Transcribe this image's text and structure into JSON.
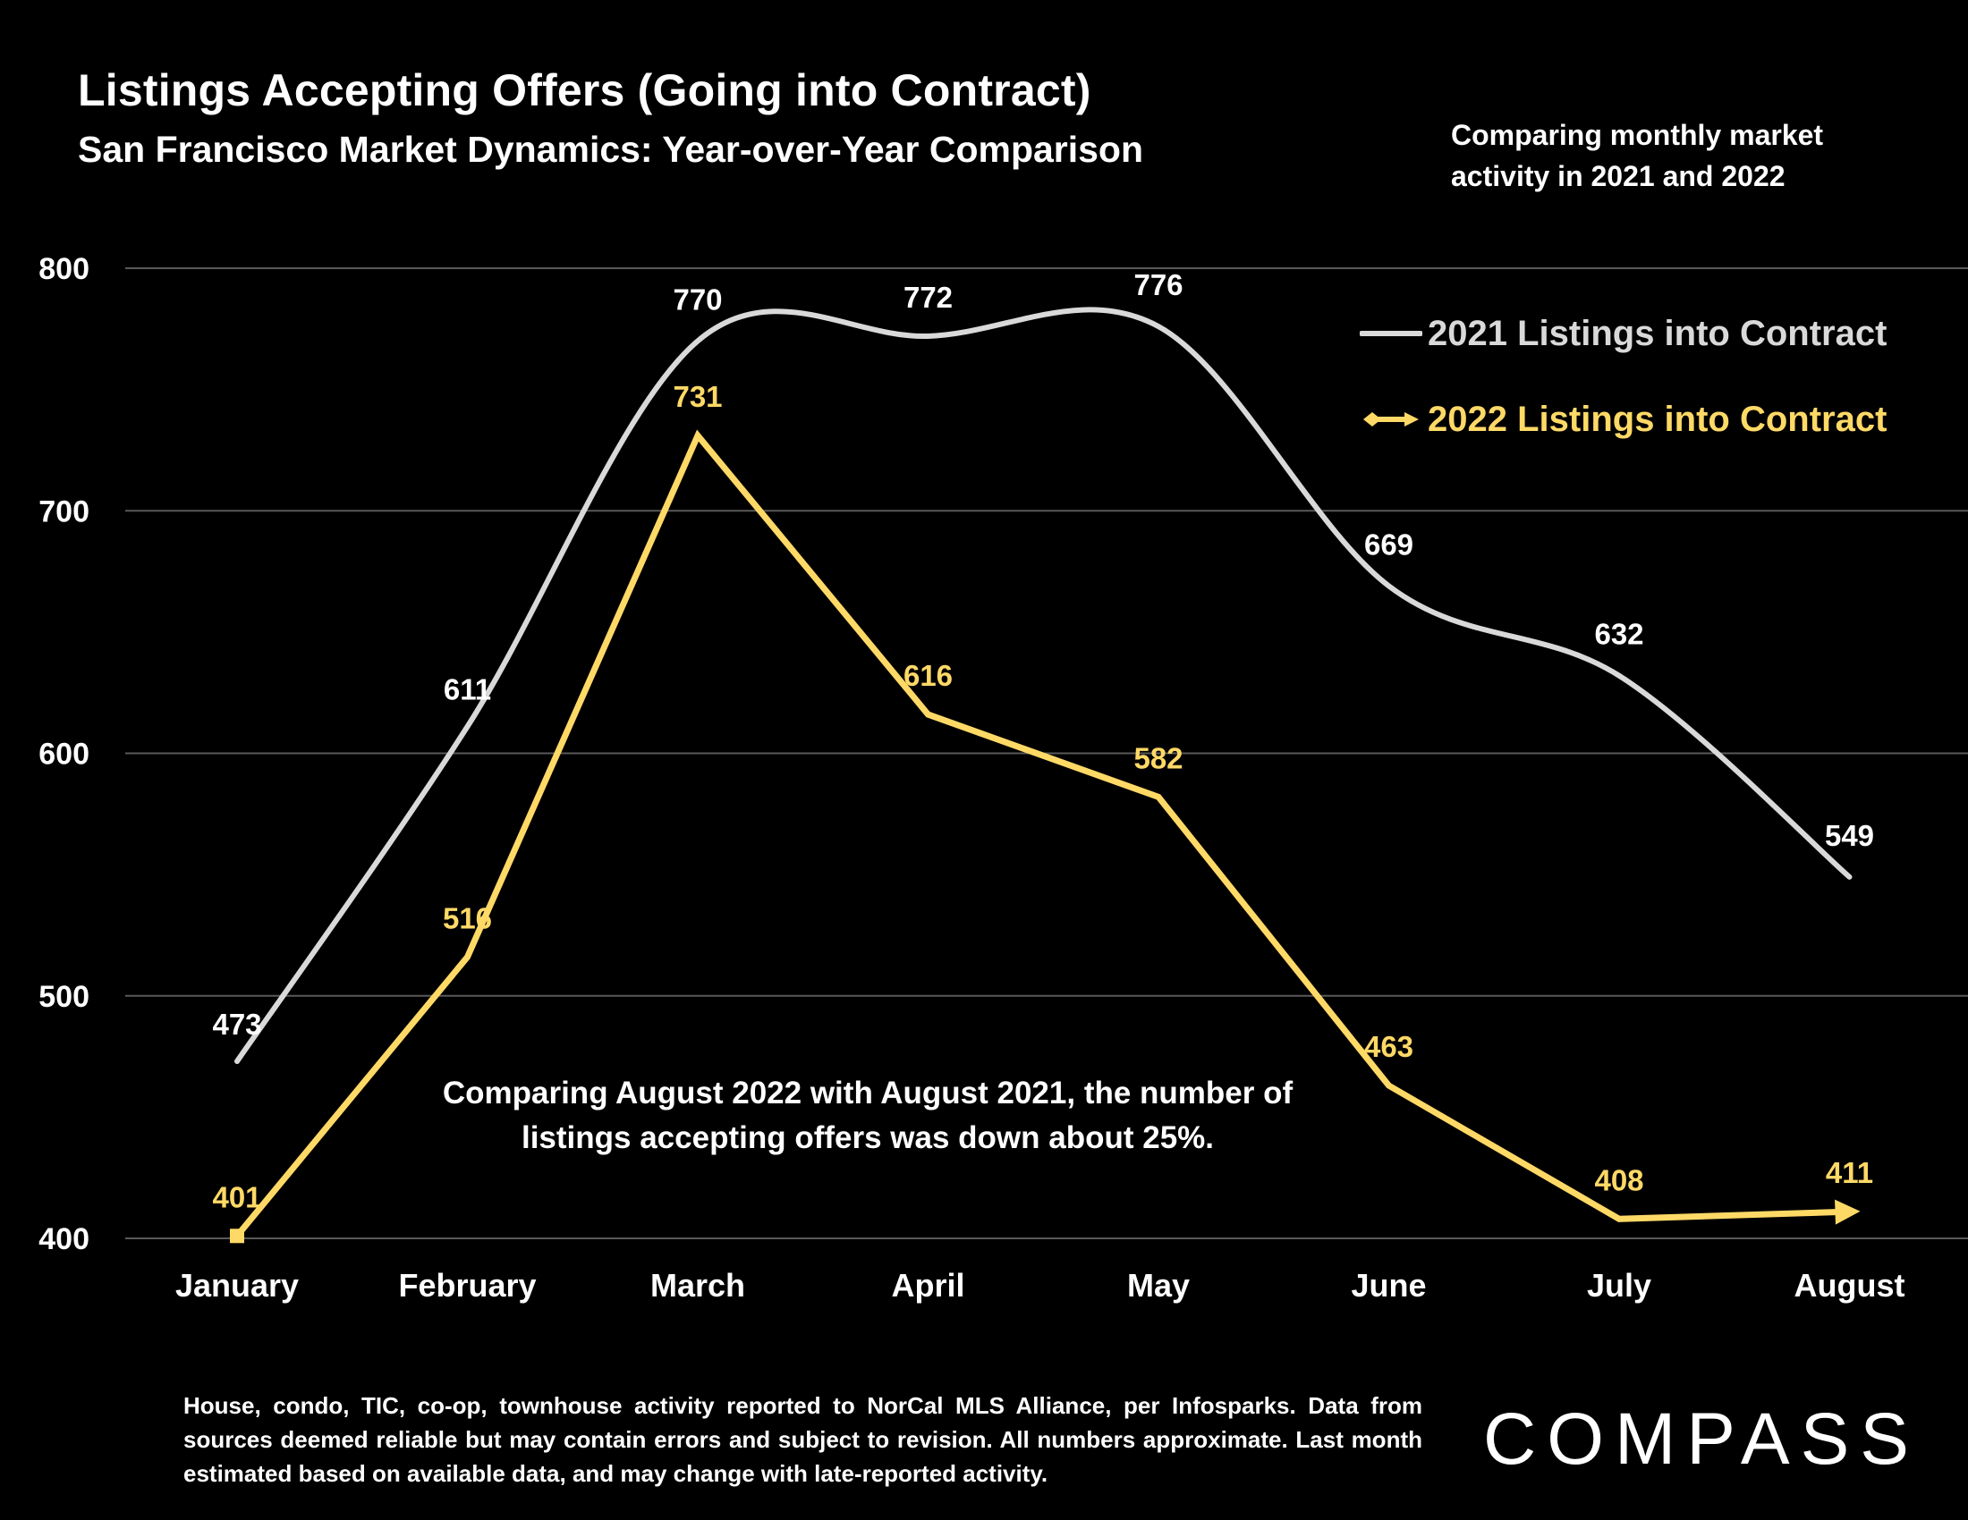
{
  "header": {
    "title": "Listings Accepting Offers (Going into Contract)",
    "subtitle": "San Francisco Market Dynamics: Year-over-Year Comparison",
    "side_note": "Comparing monthly market activity in 2021 and 2022"
  },
  "annotation": "Comparing August 2022 with August 2021, the number of listings accepting offers was down about 25%.",
  "footer": {
    "note": "House, condo, TIC, co-op, townhouse activity reported to NorCal MLS Alliance, per Infosparks. Data from sources deemed reliable but may contain errors and subject to revision. All numbers approximate. Last month estimated based on available data, and may change with late-reported activity.",
    "brand": "COMPASS"
  },
  "colors": {
    "background": "#000000",
    "series_2021": "#d9d9d9",
    "series_2022": "#ffd966",
    "gridline": "#595959",
    "text": "#ffffff"
  },
  "chart_data": {
    "type": "line",
    "categories": [
      "January",
      "February",
      "March",
      "April",
      "May",
      "June",
      "July",
      "August"
    ],
    "ylim": [
      400,
      800
    ],
    "yticks": [
      400,
      500,
      600,
      700,
      800
    ],
    "grid": true,
    "legend_position": "top-right",
    "series": [
      {
        "name": "2021 Listings into Contract",
        "values": [
          473,
          611,
          770,
          772,
          776,
          669,
          632,
          549
        ],
        "smooth": true,
        "color": "#d9d9d9"
      },
      {
        "name": "2022 Listings into Contract",
        "values": [
          401,
          516,
          731,
          616,
          582,
          463,
          408,
          411
        ],
        "smooth": false,
        "color": "#ffd966"
      }
    ]
  }
}
